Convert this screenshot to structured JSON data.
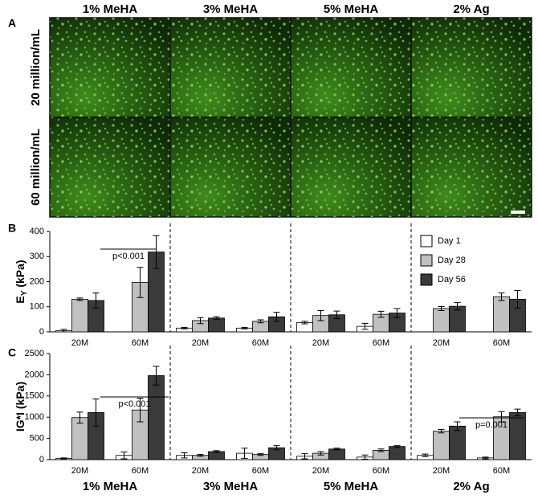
{
  "panel_a": {
    "letter": "A",
    "columns": [
      "1% MeHA",
      "3% MeHA",
      "5% MeHA",
      "2% Ag"
    ],
    "rows": [
      "20 million/mL",
      "60 million/mL"
    ]
  },
  "chart_data": [
    {
      "type": "bar",
      "letter": "B",
      "ylabel": {
        "main": "E",
        "sub": "Y",
        "unit": " (kPa)"
      },
      "categories": [
        "20M",
        "60M",
        "20M",
        "60M",
        "20M",
        "60M",
        "20M",
        "60M"
      ],
      "ylim": [
        0,
        400
      ],
      "yticks": [
        0,
        100,
        200,
        300,
        400
      ],
      "legend": "upper right",
      "series": [
        {
          "name": "Day 1",
          "color": "#ffffff",
          "values": [
            5,
            0,
            15,
            15,
            37,
            22,
            null,
            null
          ],
          "errors": [
            5,
            0,
            3,
            3,
            5,
            12,
            null,
            null
          ]
        },
        {
          "name": "Day 28",
          "color": "#c0c0c0",
          "values": [
            130,
            197,
            45,
            42,
            65,
            70,
            93,
            140
          ],
          "errors": [
            5,
            60,
            12,
            6,
            20,
            12,
            8,
            15
          ]
        },
        {
          "name": "Day 56",
          "color": "#3a3a3a",
          "values": [
            125,
            318,
            55,
            60,
            68,
            75,
            102,
            130
          ],
          "errors": [
            30,
            65,
            5,
            18,
            15,
            18,
            15,
            35
          ]
        }
      ],
      "annotations": [
        "p<0.001"
      ]
    },
    {
      "type": "bar",
      "letter": "C",
      "ylabel": {
        "main": "IG*I",
        "sub": "",
        "unit": " (kPa)"
      },
      "categories": [
        "20M",
        "60M",
        "20M",
        "60M",
        "20M",
        "60M",
        "20M",
        "60M"
      ],
      "groups": [
        "1% MeHA",
        "3% MeHA",
        "5% MeHA",
        "2% Ag"
      ],
      "ylim": [
        0,
        2500
      ],
      "yticks": [
        0,
        500,
        1000,
        1500,
        2000,
        2500
      ],
      "series": [
        {
          "name": "Day 1",
          "color": "#ffffff",
          "values": [
            30,
            100,
            100,
            150,
            80,
            60,
            100,
            40
          ],
          "errors": [
            10,
            80,
            60,
            120,
            60,
            50,
            30,
            20
          ]
        },
        {
          "name": "Day 28",
          "color": "#c0c0c0",
          "values": [
            990,
            1170,
            100,
            120,
            150,
            220,
            670,
            1010
          ],
          "errors": [
            130,
            280,
            20,
            20,
            40,
            30,
            40,
            120
          ]
        },
        {
          "name": "Day 56",
          "color": "#3a3a3a",
          "values": [
            1110,
            1980,
            190,
            280,
            250,
            310,
            790,
            1110
          ],
          "errors": [
            320,
            220,
            20,
            50,
            20,
            20,
            100,
            80
          ]
        }
      ],
      "annotations": [
        "p<0.001",
        "p=0.001"
      ]
    }
  ]
}
